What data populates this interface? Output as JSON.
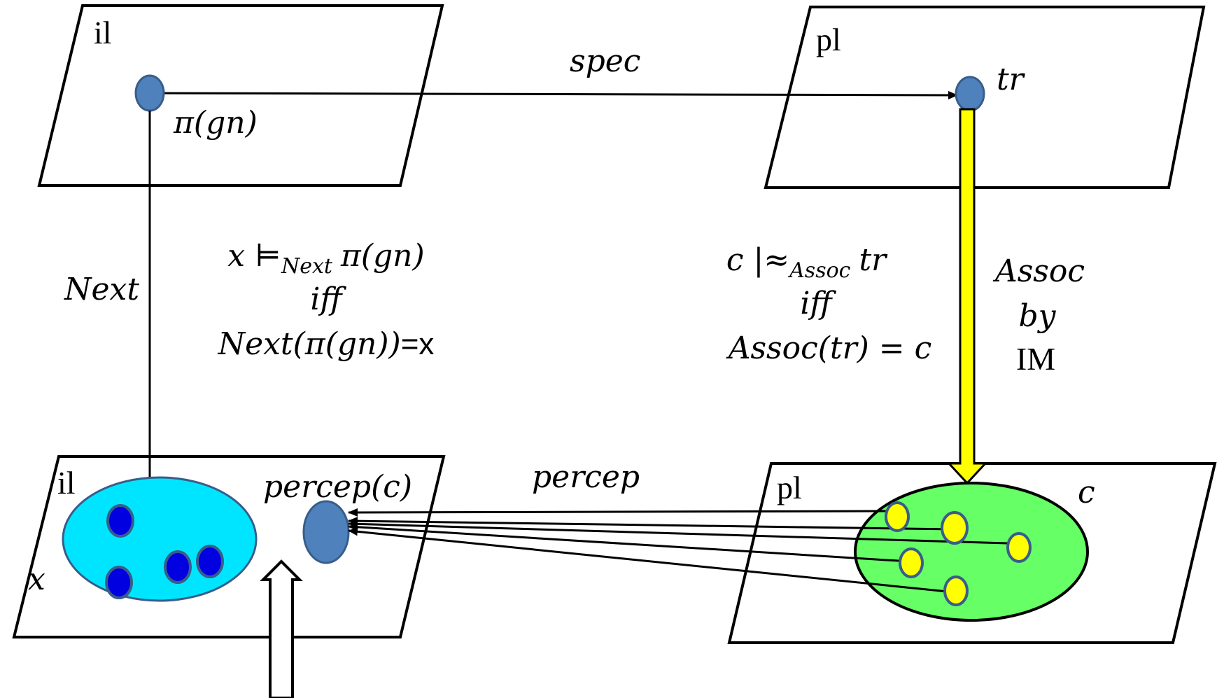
{
  "planes": {
    "top_left": "il",
    "top_right": "pl",
    "bottom_left": "il",
    "bottom_right": "pl"
  },
  "labels": {
    "pi_gn": "π(gn)",
    "spec": "spec",
    "tr": "tr",
    "next_arrow": "Next",
    "x_var": "x",
    "percep_c": "percep(c)",
    "percep_arrow": "percep",
    "c_var": "c",
    "assoc_by_im": {
      "line1": "Assoc",
      "line2": "by",
      "line3": "IM"
    }
  },
  "formula_next": {
    "lhs": "x ⊨",
    "sub": "Next",
    "rhs": "π(gn)",
    "iff": "iff",
    "eq_lhs": "Next(π(gn))",
    "eq_rhs": "=x"
  },
  "formula_assoc": {
    "lhs": "c |≈",
    "sub": "Assoc",
    "rhs": "tr",
    "iff": "iff",
    "eq": "Assoc(tr) = c"
  },
  "colors": {
    "node_blue": "#4f81bd",
    "node_stroke": "#385d8a",
    "cyan_set": "#00e5ff",
    "dark_blue_dot": "#0000e0",
    "green_set": "#66ff66",
    "yellow": "#ffff00"
  }
}
